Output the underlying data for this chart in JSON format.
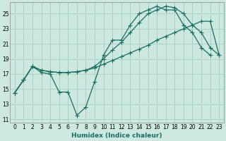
{
  "xlabel": "Humidex (Indice chaleur)",
  "bg_color": "#cce8e0",
  "grid_color": "#aad0c8",
  "line_color": "#1a6e60",
  "x_ticks": [
    0,
    1,
    2,
    3,
    4,
    5,
    6,
    7,
    8,
    9,
    10,
    11,
    12,
    13,
    14,
    15,
    16,
    17,
    18,
    19,
    20,
    21,
    22,
    23
  ],
  "y_ticks": [
    11,
    13,
    15,
    17,
    19,
    21,
    23,
    25
  ],
  "xlim": [
    -0.5,
    23.5
  ],
  "ylim": [
    10.5,
    26.5
  ],
  "s0_x": [
    0,
    1,
    2,
    3,
    4,
    5,
    6,
    7,
    8,
    9,
    10,
    11,
    12,
    13,
    14,
    15,
    16,
    17,
    18,
    19,
    20,
    21,
    22
  ],
  "s0_y": [
    14.5,
    16.2,
    18.0,
    17.2,
    17.0,
    14.6,
    14.6,
    11.5,
    12.6,
    16.0,
    19.5,
    21.5,
    21.5,
    23.5,
    25.0,
    25.5,
    26.0,
    25.5,
    25.5,
    23.5,
    22.5,
    20.5,
    19.5
  ],
  "s1_x": [
    0,
    1,
    2,
    3,
    4,
    5,
    6,
    7,
    8,
    9,
    10,
    11,
    12,
    13,
    14,
    15,
    16,
    17,
    18,
    19,
    20,
    21,
    22,
    23
  ],
  "s1_y": [
    14.5,
    16.2,
    18.0,
    17.5,
    17.3,
    17.2,
    17.2,
    17.3,
    17.5,
    17.8,
    18.3,
    18.8,
    19.3,
    19.8,
    20.3,
    20.8,
    21.5,
    22.0,
    22.5,
    23.0,
    23.5,
    24.0,
    24.0,
    19.5
  ],
  "s2_x": [
    0,
    1,
    2,
    3,
    4,
    5,
    6,
    7,
    8,
    9,
    10,
    11,
    12,
    13,
    14,
    15,
    16,
    17,
    18,
    19,
    20,
    21,
    22,
    23
  ],
  "s2_y": [
    14.5,
    16.2,
    18.0,
    17.5,
    17.3,
    17.2,
    17.2,
    17.3,
    17.5,
    18.0,
    19.0,
    20.2,
    21.2,
    22.5,
    23.8,
    25.0,
    25.5,
    26.0,
    25.8,
    25.0,
    23.5,
    22.5,
    20.5,
    19.5
  ],
  "xlabel_fontsize": 6.5,
  "tick_fontsize": 5.5
}
